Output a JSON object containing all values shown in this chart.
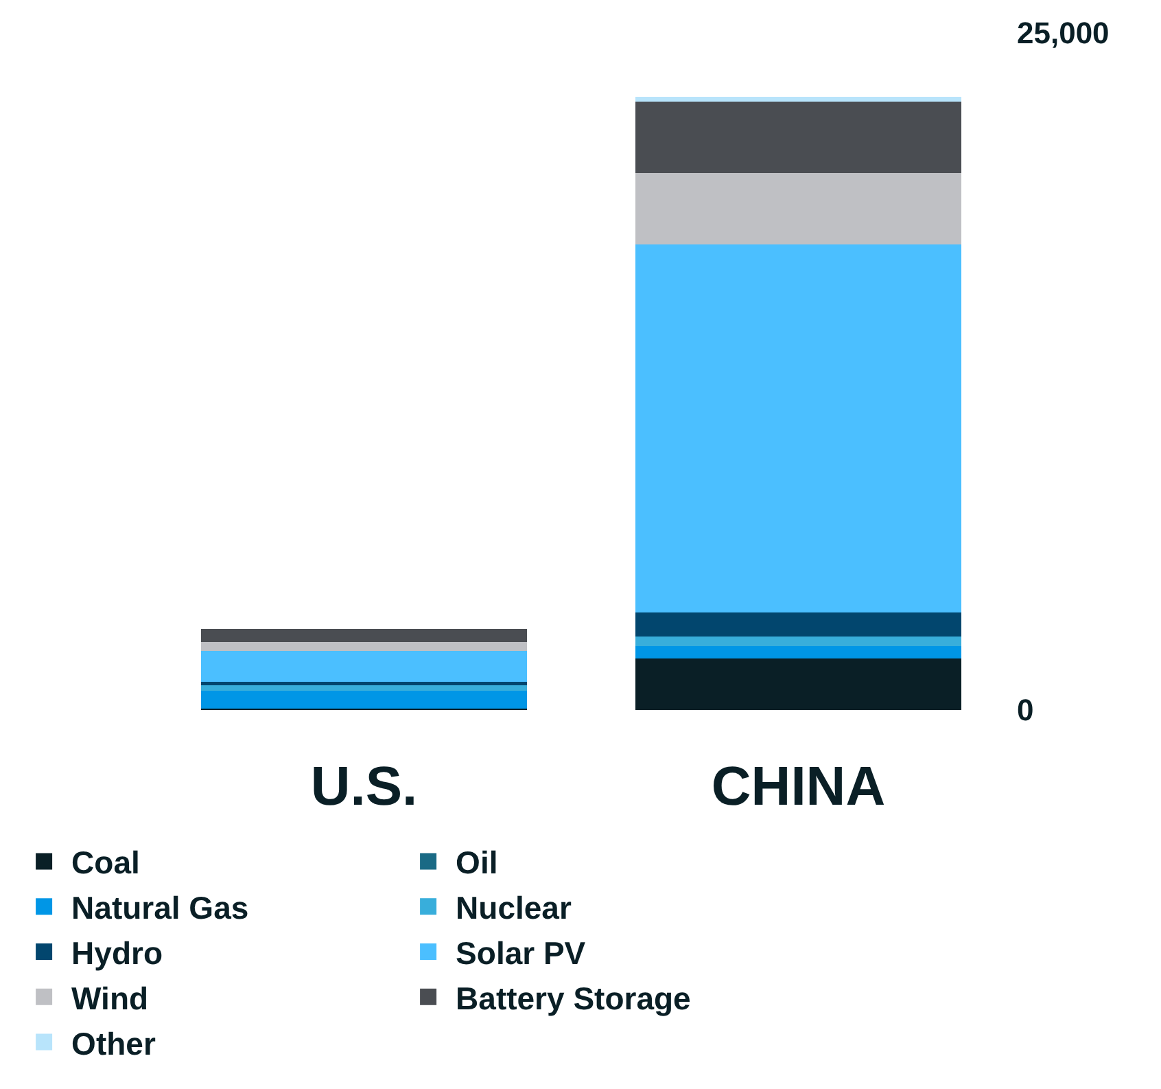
{
  "chart_data": {
    "type": "bar",
    "stacked": true,
    "categories": [
      "U.S.",
      "CHINA"
    ],
    "series": [
      {
        "name": "Coal",
        "color": "#0a1f26",
        "values": [
          40,
          1890
        ]
      },
      {
        "name": "Oil",
        "color": "#1a6a85",
        "values": [
          0,
          0
        ]
      },
      {
        "name": "Natural Gas",
        "color": "#0096e6",
        "values": [
          660,
          480
        ]
      },
      {
        "name": "Nuclear",
        "color": "#38aedb",
        "values": [
          220,
          350
        ]
      },
      {
        "name": "Hydro",
        "color": "#02466e",
        "values": [
          130,
          880
        ]
      },
      {
        "name": "Solar PV",
        "color": "#4bbfff",
        "values": [
          1140,
          13600
        ]
      },
      {
        "name": "Wind",
        "color": "#bfc0c4",
        "values": [
          310,
          2630
        ]
      },
      {
        "name": "Battery Storage",
        "color": "#4a4d52",
        "values": [
          480,
          2630
        ]
      },
      {
        "name": "Other",
        "color": "#b8e4fb",
        "values": [
          0,
          180
        ]
      }
    ],
    "ylim": [
      0,
      25000
    ],
    "yticks": [
      0,
      {
        "value": 25000,
        "label": "25,000"
      }
    ],
    "legend": "bottom"
  }
}
